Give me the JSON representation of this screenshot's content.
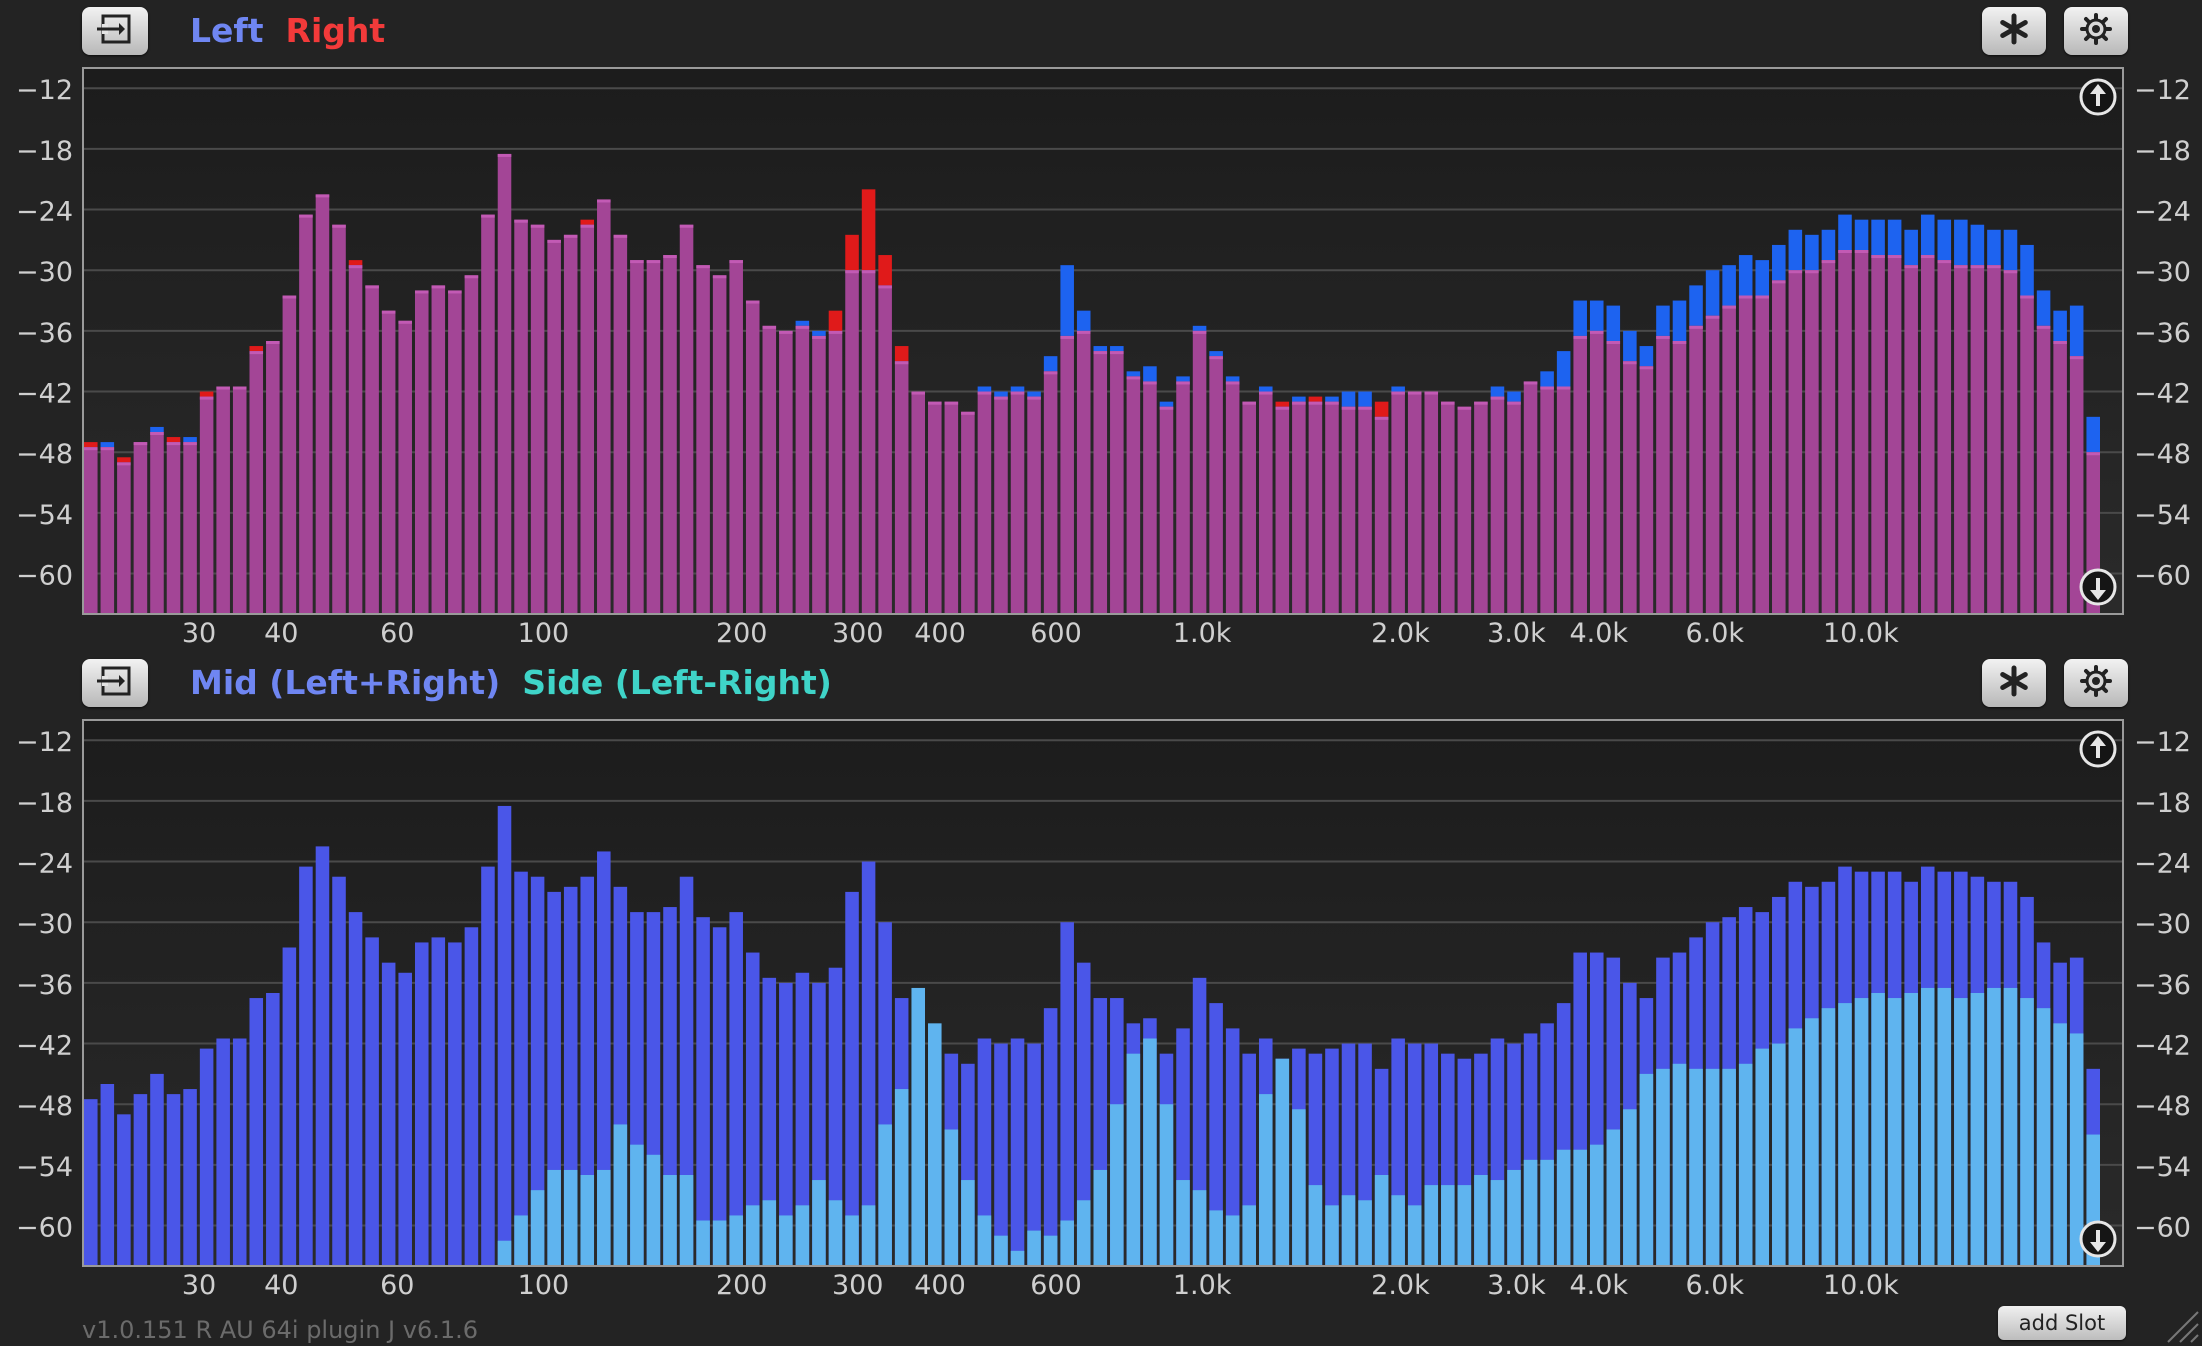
{
  "version_text": "v1.0.151 R AU 64i  plugin J v6.1.6",
  "add_slot_label": "add Slot",
  "panels": [
    {
      "legend": [
        {
          "label": "Left",
          "color": "#6f86f2"
        },
        {
          "label": "Right",
          "color": "#f23a3a"
        }
      ],
      "chart_data": {
        "type": "bar",
        "xscale": "log",
        "xlim": [
          20,
          25000
        ],
        "ylim": [
          -64,
          -10
        ],
        "y_ticks": [
          -12,
          -18,
          -24,
          -30,
          -36,
          -42,
          -48,
          -54,
          -60
        ],
        "x_ticks": [
          {
            "value": 30,
            "label": "30"
          },
          {
            "value": 40,
            "label": "40"
          },
          {
            "value": 60,
            "label": "60"
          },
          {
            "value": 100,
            "label": "100"
          },
          {
            "value": 200,
            "label": "200"
          },
          {
            "value": 300,
            "label": "300"
          },
          {
            "value": 400,
            "label": "400"
          },
          {
            "value": 600,
            "label": "600"
          },
          {
            "value": 1000,
            "label": "1.0k"
          },
          {
            "value": 2000,
            "label": "2.0k"
          },
          {
            "value": 3000,
            "label": "3.0k"
          },
          {
            "value": 4000,
            "label": "4.0k"
          },
          {
            "value": 6000,
            "label": "6.0k"
          },
          {
            "value": 10000,
            "label": "10.0k"
          }
        ],
        "series": [
          {
            "name": "Left",
            "color": "#1d63f0",
            "values": [
              -47.5,
              -47.0,
              -49.0,
              -47.0,
              -45.5,
              -47.0,
              -46.5,
              -42.5,
              -41.5,
              -41.5,
              -38.0,
              -37.0,
              -32.5,
              -24.5,
              -22.5,
              -25.5,
              -29.5,
              -31.5,
              -34.0,
              -35.0,
              -32.0,
              -31.5,
              -32.0,
              -30.5,
              -24.5,
              -18.5,
              -25.0,
              -25.5,
              -27.0,
              -26.5,
              -25.5,
              -23.0,
              -26.5,
              -29.0,
              -29.0,
              -28.5,
              -25.5,
              -29.5,
              -30.5,
              -29.0,
              -33.0,
              -35.5,
              -36.0,
              -35.0,
              -36.0,
              -36.0,
              -30.0,
              -30.0,
              -31.5,
              -39.0,
              -42.0,
              -43.0,
              -43.0,
              -44.0,
              -41.5,
              -42.0,
              -41.5,
              -42.0,
              -38.5,
              -29.5,
              -34.0,
              -37.5,
              -37.5,
              -40.0,
              -39.5,
              -43.0,
              -40.5,
              -35.5,
              -38.0,
              -40.5,
              -43.0,
              -41.5,
              -43.5,
              -42.5,
              -43.0,
              -42.5,
              -42.0,
              -42.0,
              -44.5,
              -41.5,
              -42.0,
              -42.0,
              -43.0,
              -43.5,
              -43.0,
              -41.5,
              -42.0,
              -41.0,
              -40.0,
              -38.0,
              -33.0,
              -33.0,
              -33.5,
              -36.0,
              -37.5,
              -33.5,
              -33.0,
              -31.5,
              -30.0,
              -29.5,
              -28.5,
              -29.0,
              -27.5,
              -26.0,
              -26.5,
              -26.0,
              -24.5,
              -25.0,
              -25.0,
              -25.0,
              -26.0,
              -24.5,
              -25.0,
              -25.0,
              -25.5,
              -26.0,
              -26.0,
              -27.5,
              -32.0,
              -34.0,
              -33.5,
              -44.5
            ]
          },
          {
            "name": "Right",
            "color": "#e01a1a",
            "values": [
              -47.0,
              -47.5,
              -48.5,
              -47.0,
              -46.0,
              -46.5,
              -47.0,
              -42.0,
              -41.5,
              -41.5,
              -37.5,
              -37.0,
              -32.5,
              -24.5,
              -22.5,
              -25.5,
              -29.0,
              -31.5,
              -34.0,
              -35.0,
              -32.0,
              -31.5,
              -32.0,
              -30.5,
              -24.5,
              -18.5,
              -25.0,
              -25.5,
              -27.0,
              -26.5,
              -25.0,
              -23.0,
              -26.5,
              -29.0,
              -29.0,
              -28.5,
              -25.5,
              -29.5,
              -30.5,
              -29.0,
              -33.0,
              -35.5,
              -36.0,
              -35.5,
              -36.5,
              -34.0,
              -26.5,
              -22.0,
              -28.5,
              -37.5,
              -42.0,
              -43.0,
              -43.0,
              -44.0,
              -42.0,
              -42.5,
              -42.0,
              -42.5,
              -40.0,
              -36.5,
              -36.0,
              -38.0,
              -38.0,
              -40.5,
              -41.0,
              -43.5,
              -41.0,
              -36.0,
              -38.5,
              -41.0,
              -43.0,
              -42.0,
              -43.0,
              -43.0,
              -42.5,
              -43.0,
              -43.5,
              -43.5,
              -43.0,
              -42.0,
              -42.0,
              -42.0,
              -43.0,
              -43.5,
              -43.0,
              -42.5,
              -43.0,
              -41.0,
              -41.5,
              -41.5,
              -36.5,
              -36.0,
              -37.0,
              -39.0,
              -39.5,
              -36.5,
              -37.0,
              -35.5,
              -34.5,
              -33.5,
              -32.5,
              -32.5,
              -31.0,
              -30.0,
              -30.0,
              -29.0,
              -28.0,
              -28.0,
              -28.5,
              -28.5,
              -29.5,
              -28.5,
              -29.0,
              -29.5,
              -29.5,
              -29.5,
              -30.0,
              -32.5,
              -35.5,
              -37.0,
              -38.5,
              -48.0
            ]
          }
        ]
      }
    },
    {
      "legend": [
        {
          "label": "Mid (Left+Right)",
          "color": "#6f86f2"
        },
        {
          "label": "Side (Left-Right)",
          "color": "#3fd4c8"
        }
      ],
      "chart_data": {
        "type": "bar",
        "xscale": "log",
        "xlim": [
          20,
          25000
        ],
        "ylim": [
          -64,
          -10
        ],
        "y_ticks": [
          -12,
          -18,
          -24,
          -30,
          -36,
          -42,
          -48,
          -54,
          -60
        ],
        "x_ticks": [
          {
            "value": 30,
            "label": "30"
          },
          {
            "value": 40,
            "label": "40"
          },
          {
            "value": 60,
            "label": "60"
          },
          {
            "value": 100,
            "label": "100"
          },
          {
            "value": 200,
            "label": "200"
          },
          {
            "value": 300,
            "label": "300"
          },
          {
            "value": 400,
            "label": "400"
          },
          {
            "value": 600,
            "label": "600"
          },
          {
            "value": 1000,
            "label": "1.0k"
          },
          {
            "value": 2000,
            "label": "2.0k"
          },
          {
            "value": 3000,
            "label": "3.0k"
          },
          {
            "value": 4000,
            "label": "4.0k"
          },
          {
            "value": 6000,
            "label": "6.0k"
          },
          {
            "value": 10000,
            "label": "10.0k"
          }
        ],
        "series": [
          {
            "name": "Mid (Left+Right)",
            "color": "#4a56e8",
            "values": [
              -47.5,
              -46.0,
              -49.0,
              -47.0,
              -45.0,
              -47.0,
              -46.5,
              -42.5,
              -41.5,
              -41.5,
              -37.5,
              -37.0,
              -32.5,
              -24.5,
              -22.5,
              -25.5,
              -29.0,
              -31.5,
              -34.0,
              -35.0,
              -32.0,
              -31.5,
              -32.0,
              -30.5,
              -24.5,
              -18.5,
              -25.0,
              -25.5,
              -27.0,
              -26.5,
              -25.5,
              -23.0,
              -26.5,
              -29.0,
              -29.0,
              -28.5,
              -25.5,
              -29.5,
              -30.5,
              -29.0,
              -33.0,
              -35.5,
              -36.0,
              -35.0,
              -36.0,
              -34.5,
              -27.0,
              -24.0,
              -30.0,
              -37.5,
              -42.0,
              -43.0,
              -43.0,
              -44.0,
              -41.5,
              -42.0,
              -41.5,
              -42.0,
              -38.5,
              -30.0,
              -34.0,
              -37.5,
              -37.5,
              -40.0,
              -39.5,
              -43.0,
              -40.5,
              -35.5,
              -38.0,
              -40.5,
              -43.0,
              -41.5,
              -43.5,
              -42.5,
              -43.0,
              -42.5,
              -42.0,
              -42.0,
              -44.5,
              -41.5,
              -42.0,
              -42.0,
              -43.0,
              -43.5,
              -43.0,
              -41.5,
              -42.0,
              -41.0,
              -40.0,
              -38.0,
              -33.0,
              -33.0,
              -33.5,
              -36.0,
              -37.5,
              -33.5,
              -33.0,
              -31.5,
              -30.0,
              -29.5,
              -28.5,
              -29.0,
              -27.5,
              -26.0,
              -26.5,
              -26.0,
              -24.5,
              -25.0,
              -25.0,
              -25.0,
              -26.0,
              -24.5,
              -25.0,
              -25.0,
              -25.5,
              -26.0,
              -26.0,
              -27.5,
              -32.0,
              -34.0,
              -33.5,
              -44.5
            ]
          },
          {
            "name": "Side (Left-Right)",
            "color": "#5fb4ef",
            "values": [
              -64,
              -64,
              -64,
              -64,
              -64,
              -64,
              -64,
              -64,
              -64,
              -64,
              -64,
              -64,
              -64,
              -64,
              -64,
              -64,
              -64,
              -64,
              -64,
              -64,
              -64,
              -64,
              -64,
              -64,
              -64,
              -61.5,
              -59.0,
              -56.5,
              -54.5,
              -54.5,
              -55.0,
              -54.5,
              -50.0,
              -52.0,
              -53.0,
              -55.0,
              -55.0,
              -59.5,
              -59.5,
              -59.0,
              -58.0,
              -57.5,
              -59.0,
              -58.0,
              -55.5,
              -57.5,
              -59.0,
              -58.0,
              -50.0,
              -46.5,
              -36.5,
              -40.0,
              -50.5,
              -55.5,
              -59.0,
              -61.0,
              -62.5,
              -60.5,
              -61.0,
              -59.5,
              -57.5,
              -54.5,
              -48.0,
              -43.0,
              -41.5,
              -48.0,
              -55.5,
              -56.5,
              -58.5,
              -59.0,
              -58.0,
              -47.0,
              -43.5,
              -48.5,
              -56.0,
              -58.0,
              -57.0,
              -57.5,
              -55.0,
              -57.0,
              -58.0,
              -56.0,
              -56.0,
              -56.0,
              -55.0,
              -55.5,
              -54.5,
              -53.5,
              -53.5,
              -52.5,
              -52.5,
              -52.0,
              -50.5,
              -48.5,
              -45.0,
              -44.5,
              -44.0,
              -44.5,
              -44.5,
              -44.5,
              -44.0,
              -42.5,
              -42.0,
              -40.5,
              -39.5,
              -38.5,
              -38.0,
              -37.5,
              -37.0,
              -37.5,
              -37.0,
              -36.5,
              -36.5,
              -37.5,
              -37.0,
              -36.5,
              -36.5,
              -37.5,
              -38.5,
              -40.0,
              -41.0,
              -51.0
            ]
          }
        ]
      }
    }
  ]
}
